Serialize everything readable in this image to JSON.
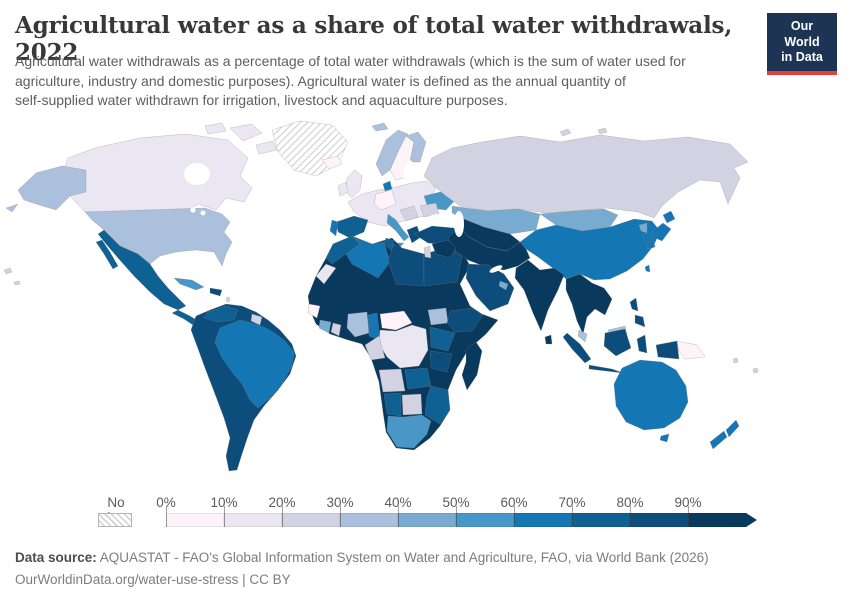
{
  "header": {
    "title": "Agricultural water as a share of total water withdrawals, 2022",
    "subtitle_lines": [
      "Agricultural water withdrawals as a percentage of total water withdrawals (which is the sum of water used for",
      "agriculture, industry and domestic purposes). Agricultural water is defined as the annual quantity of",
      "self-supplied water withdrawn for irrigation, livestock and aquaculture purposes."
    ],
    "logo": {
      "line1": "Our World",
      "line2": "in Data",
      "bg": "#1d3455",
      "accent": "#e2403b"
    }
  },
  "legend": {
    "no_data_label": "No data",
    "bins": [
      {
        "tick": "0%",
        "range": "0-10%",
        "color": "#fdf3f8"
      },
      {
        "tick": "10%",
        "range": "10-20%",
        "color": "#ebe7f2"
      },
      {
        "tick": "20%",
        "range": "20-30%",
        "color": "#d2d2e3"
      },
      {
        "tick": "30%",
        "range": "30-40%",
        "color": "#abc0dd"
      },
      {
        "tick": "40%",
        "range": "40-50%",
        "color": "#79abd0"
      },
      {
        "tick": "50%",
        "range": "50-60%",
        "color": "#4897c6"
      },
      {
        "tick": "60%",
        "range": "60-70%",
        "color": "#1576b4"
      },
      {
        "tick": "70%",
        "range": "70-80%",
        "color": "#0f6093"
      },
      {
        "tick": "80%",
        "range": "80-90%",
        "color": "#0c4d7c"
      },
      {
        "tick": "90%",
        "range": "90-100%",
        "color": "#093a5e"
      }
    ]
  },
  "footer": {
    "source_label": "Data source:",
    "source_text": "AQUASTAT - FAO's Global Information System on Water and Agriculture, FAO, via World Bank (2026)",
    "note": "OurWorldinData.org/water-use-stress | CC BY"
  },
  "chart_data": {
    "type": "heatmap",
    "subtype": "choropleth-world-map",
    "title": "Agricultural water as a share of total water withdrawals, 2022",
    "unit": "% of total water withdrawals",
    "year": "2022",
    "legend_position": "bottom",
    "no_data_style": "diagonal-hatch",
    "regions": [
      {
        "key": "greenland",
        "name": "Greenland",
        "bin": -1,
        "value": "No data"
      },
      {
        "key": "canada",
        "name": "Canada",
        "bin": 1,
        "value": "10-20%"
      },
      {
        "key": "usa",
        "name": "United States",
        "bin": 3,
        "value": "30-40%"
      },
      {
        "key": "iceland",
        "name": "Iceland",
        "bin": 0,
        "value": "0-10%"
      },
      {
        "key": "mexico",
        "name": "Mexico",
        "bin": 7,
        "value": "70-80%"
      },
      {
        "key": "central-america",
        "name": "Central America",
        "bin": 7,
        "value": "70-80%"
      },
      {
        "key": "cuba",
        "name": "Cuba",
        "bin": 5,
        "value": "50-60%"
      },
      {
        "key": "hispaniola",
        "name": "Haiti & Dominican Republic",
        "bin": 8,
        "value": "80-90%"
      },
      {
        "key": "south-america",
        "name": "Colombia, Peru, Bolivia, Chile & Argentina",
        "bin": 8,
        "value": "80-90%"
      },
      {
        "key": "brazil",
        "name": "Brazil",
        "bin": 6,
        "value": "60-70%"
      },
      {
        "key": "venezuela",
        "name": "Venezuela",
        "bin": 7,
        "value": "70-80%"
      },
      {
        "key": "guianas",
        "name": "Guianas",
        "bin": 2,
        "value": "20-30%"
      },
      {
        "key": "uk",
        "name": "United Kingdom",
        "bin": 1,
        "value": "10-20%"
      },
      {
        "key": "ireland",
        "name": "Ireland",
        "bin": 1,
        "value": "10-20%"
      },
      {
        "key": "norway",
        "name": "Norway",
        "bin": 3,
        "value": "30-40%"
      },
      {
        "key": "sweden",
        "name": "Sweden",
        "bin": 0,
        "value": "0-10%"
      },
      {
        "key": "finland",
        "name": "Finland",
        "bin": 3,
        "value": "30-40%"
      },
      {
        "key": "denmark",
        "name": "Denmark",
        "bin": 6,
        "value": "60-70%"
      },
      {
        "key": "europe-mainland",
        "name": "Western & Central Europe",
        "bin": 1,
        "value": "10-20%"
      },
      {
        "key": "germany",
        "name": "Germany",
        "bin": 0,
        "value": "0-10%"
      },
      {
        "key": "balkans",
        "name": "Balkans",
        "bin": 2,
        "value": "20-30%"
      },
      {
        "key": "spain",
        "name": "Spain",
        "bin": 7,
        "value": "70-80%"
      },
      {
        "key": "portugal",
        "name": "Portugal",
        "bin": 6,
        "value": "60-70%"
      },
      {
        "key": "italy",
        "name": "Italy",
        "bin": 5,
        "value": "50-60%"
      },
      {
        "key": "greece",
        "name": "Greece",
        "bin": 8,
        "value": "80-90%"
      },
      {
        "key": "ukraine",
        "name": "Ukraine",
        "bin": 5,
        "value": "50-60%"
      },
      {
        "key": "romania",
        "name": "Romania",
        "bin": 2,
        "value": "20-30%"
      },
      {
        "key": "turkey",
        "name": "Turkey",
        "bin": 8,
        "value": "80-90%"
      },
      {
        "key": "sahara-sahel",
        "name": "Mauritania, Mali, Niger, Chad, Sudan, Senegal & Somalia",
        "bin": 9,
        "value": "90-100%"
      },
      {
        "key": "morocco",
        "name": "Morocco",
        "bin": 7,
        "value": "70-80%"
      },
      {
        "key": "western-sahara",
        "name": "Western Sahara",
        "bin": 1,
        "value": "10-20%"
      },
      {
        "key": "algeria",
        "name": "Algeria",
        "bin": 6,
        "value": "60-70%"
      },
      {
        "key": "tunisia",
        "name": "Tunisia",
        "bin": 7,
        "value": "70-80%"
      },
      {
        "key": "libya",
        "name": "Libya",
        "bin": 8,
        "value": "80-90%"
      },
      {
        "key": "egypt",
        "name": "Egypt",
        "bin": 8,
        "value": "80-90%"
      },
      {
        "key": "guinea-coast",
        "name": "Guinea & Sierra Leone",
        "bin": 0,
        "value": "0-10%"
      },
      {
        "key": "ivory-coast",
        "name": "Cote d'Ivoire",
        "bin": 4,
        "value": "40-50%"
      },
      {
        "key": "ghana",
        "name": "Ghana",
        "bin": 2,
        "value": "20-30%"
      },
      {
        "key": "nigeria",
        "name": "Nigeria",
        "bin": 3,
        "value": "30-40%"
      },
      {
        "key": "cameroon",
        "name": "Cameroon",
        "bin": 6,
        "value": "60-70%"
      },
      {
        "key": "central-african-republic",
        "name": "Central African Republic",
        "bin": 0,
        "value": "0-10%"
      },
      {
        "key": "south-sudan",
        "name": "South Sudan",
        "bin": 3,
        "value": "30-40%"
      },
      {
        "key": "ethiopia",
        "name": "Ethiopia",
        "bin": 8,
        "value": "80-90%"
      },
      {
        "key": "kenya-uganda",
        "name": "Kenya & Uganda",
        "bin": 7,
        "value": "70-80%"
      },
      {
        "key": "dr-congo",
        "name": "Democratic Republic of Congo",
        "bin": 1,
        "value": "10-20%"
      },
      {
        "key": "congo-gabon",
        "name": "Congo & Gabon",
        "bin": 2,
        "value": "20-30%"
      },
      {
        "key": "tanzania",
        "name": "Tanzania",
        "bin": 8,
        "value": "80-90%"
      },
      {
        "key": "angola",
        "name": "Angola",
        "bin": 2,
        "value": "20-30%"
      },
      {
        "key": "zambia",
        "name": "Zambia",
        "bin": 7,
        "value": "70-80%"
      },
      {
        "key": "mozambique-zimbabwe",
        "name": "Mozambique & Zimbabwe",
        "bin": 7,
        "value": "70-80%"
      },
      {
        "key": "namibia",
        "name": "Namibia",
        "bin": 7,
        "value": "70-80%"
      },
      {
        "key": "botswana",
        "name": "Botswana",
        "bin": 2,
        "value": "20-30%"
      },
      {
        "key": "south-africa",
        "name": "South Africa",
        "bin": 5,
        "value": "50-60%"
      },
      {
        "key": "madagascar",
        "name": "Madagascar",
        "bin": 9,
        "value": "90-100%"
      },
      {
        "key": "israel-jordan",
        "name": "Israel & Jordan",
        "bin": 2,
        "value": "20-30%"
      },
      {
        "key": "russia",
        "name": "Russia",
        "bin": 2,
        "value": "20-30%"
      },
      {
        "key": "kazakhstan",
        "name": "Kazakhstan",
        "bin": 4,
        "value": "40-50%"
      },
      {
        "key": "central-asia",
        "name": "Turkmenistan, Uzbekistan, Kyrgyzstan & Tajikistan",
        "bin": 9,
        "value": "90-100%"
      },
      {
        "key": "mongolia",
        "name": "Mongolia",
        "bin": 4,
        "value": "40-50%"
      },
      {
        "key": "china",
        "name": "China",
        "bin": 6,
        "value": "60-70%"
      },
      {
        "key": "iran-afghanistan-pakistan",
        "name": "Iran, Afghanistan & Pakistan",
        "bin": 9,
        "value": "90-100%"
      },
      {
        "key": "iraq-syria",
        "name": "Iraq & Syria",
        "bin": 9,
        "value": "90-100%"
      },
      {
        "key": "saudi-arabia",
        "name": "Arabian Peninsula",
        "bin": 8,
        "value": "80-90%"
      },
      {
        "key": "uae",
        "name": "United Arab Emirates",
        "bin": 4,
        "value": "40-50%"
      },
      {
        "key": "india",
        "name": "India",
        "bin": 9,
        "value": "90-100%"
      },
      {
        "key": "sri-lanka",
        "name": "Sri Lanka",
        "bin": 9,
        "value": "90-100%"
      },
      {
        "key": "mainland-southeast-asia",
        "name": "Myanmar, Thailand, Laos, Cambodia & Vietnam",
        "bin": 9,
        "value": "90-100%"
      },
      {
        "key": "malaysia",
        "name": "Malaysia",
        "bin": 3,
        "value": "30-40%"
      },
      {
        "key": "indonesia",
        "name": "Indonesia",
        "bin": 8,
        "value": "80-90%"
      },
      {
        "key": "papua-new-guinea",
        "name": "Papua New Guinea",
        "bin": 0,
        "value": "0-10%"
      },
      {
        "key": "philippines",
        "name": "Philippines",
        "bin": 8,
        "value": "80-90%"
      },
      {
        "key": "japan",
        "name": "Japan",
        "bin": 6,
        "value": "60-70%"
      },
      {
        "key": "south-korea",
        "name": "South Korea",
        "bin": 6,
        "value": "60-70%"
      },
      {
        "key": "north-korea",
        "name": "North Korea",
        "bin": 4,
        "value": "40-50%"
      },
      {
        "key": "taiwan",
        "name": "Taiwan",
        "bin": 6,
        "value": "60-70%"
      },
      {
        "key": "australia",
        "name": "Australia",
        "bin": 6,
        "value": "60-70%"
      },
      {
        "key": "new-zealand",
        "name": "New Zealand",
        "bin": 6,
        "value": "60-70%"
      },
      {
        "key": "pacific-islands",
        "name": "Pacific islands",
        "bin": 2,
        "value": "20-30%"
      },
      {
        "key": "small-islands",
        "name": "Small islands",
        "bin": 2,
        "value": "20-30%"
      }
    ]
  }
}
